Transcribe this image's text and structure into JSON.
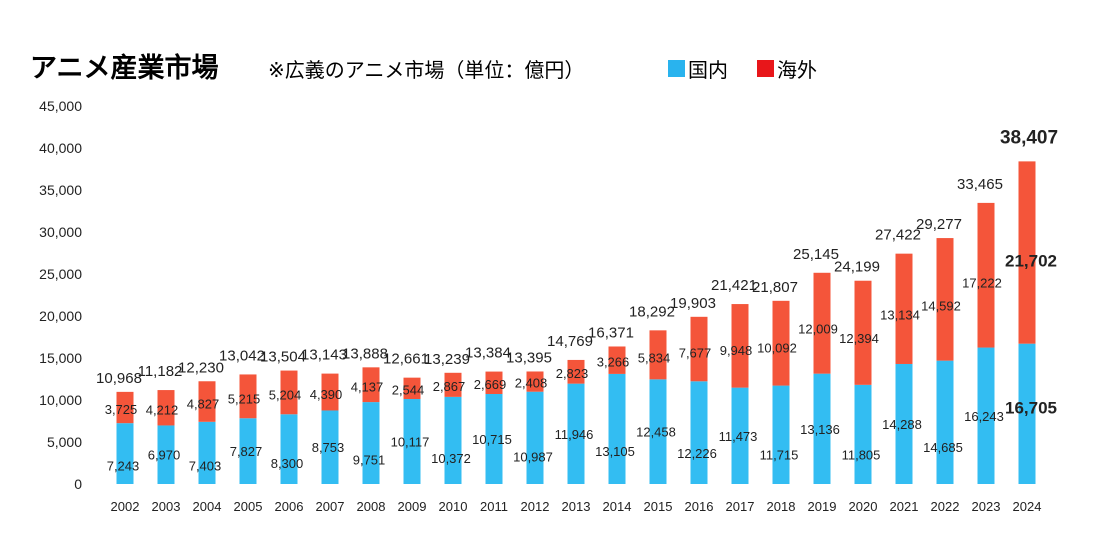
{
  "title": "アニメ産業市場",
  "subtitle": "※広義のアニメ市場（単位：億円）",
  "chart_data": {
    "type": "bar",
    "stacked": true,
    "title": "アニメ産業市場",
    "subtitle": "※広義のアニメ市場（単位：億円）",
    "categories": [
      "2002",
      "2003",
      "2004",
      "2005",
      "2006",
      "2007",
      "2008",
      "2009",
      "2010",
      "2011",
      "2012",
      "2013",
      "2014",
      "2015",
      "2016",
      "2017",
      "2018",
      "2019",
      "2020",
      "2021",
      "2022",
      "2023",
      "2024"
    ],
    "series": [
      {
        "name": "国内",
        "color": "#33bdf2",
        "values": [
          7243,
          6970,
          7403,
          7827,
          8300,
          8753,
          9751,
          10117,
          10372,
          10715,
          10987,
          11946,
          13105,
          12458,
          12226,
          11473,
          11715,
          13136,
          11805,
          14288,
          14685,
          16243,
          16705
        ]
      },
      {
        "name": "海外",
        "color": "#f4553a",
        "values": [
          3725,
          4212,
          4827,
          5215,
          5204,
          4390,
          4137,
          2544,
          2867,
          2669,
          2408,
          2823,
          3266,
          5834,
          7677,
          9948,
          10092,
          12009,
          12394,
          13134,
          14592,
          17222,
          21702
        ]
      }
    ],
    "totals": [
      10968,
      11182,
      12230,
      13042,
      13504,
      13143,
      13888,
      12661,
      13239,
      13384,
      13395,
      14769,
      16371,
      18292,
      19903,
      21421,
      21807,
      25145,
      24199,
      27422,
      29277,
      33465,
      38407
    ],
    "yticks": [
      "0",
      "5,000",
      "10,000",
      "15,000",
      "20,000",
      "25,000",
      "30,000",
      "35,000",
      "40,000",
      "45,000"
    ],
    "ylim": [
      0,
      45000
    ],
    "grid": false,
    "legend_position": "top",
    "legend_colors": {
      "国内": "#29b3ee",
      "海外": "#e8161a"
    }
  }
}
